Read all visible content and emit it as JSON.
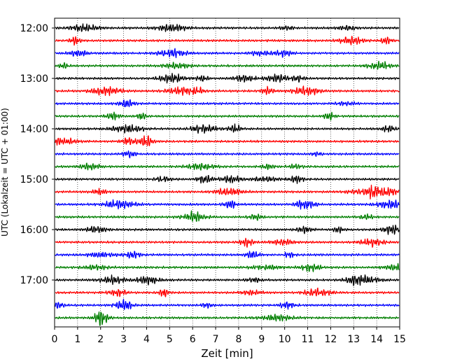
{
  "chart_data": {
    "type": "line",
    "title": "",
    "xlabel": "Zeit  [min]",
    "ylabel": "UTC (Lokalzeit = UTC + 01:00)",
    "xlim": [
      0,
      15
    ],
    "x_ticks": [
      "0",
      "1",
      "2",
      "3",
      "4",
      "5",
      "6",
      "7",
      "8",
      "9",
      "10",
      "11",
      "12",
      "13",
      "14",
      "15"
    ],
    "y_ticks": [
      "12:00",
      "13:00",
      "14:00",
      "15:00",
      "16:00",
      "17:00"
    ],
    "grid": "vertical dotted",
    "trace_interval_min": 15,
    "trace_start": "12:00",
    "trace_count": 24,
    "trace_colors": [
      "#000000",
      "#ff0000",
      "#0000ff",
      "#007f00"
    ]
  }
}
